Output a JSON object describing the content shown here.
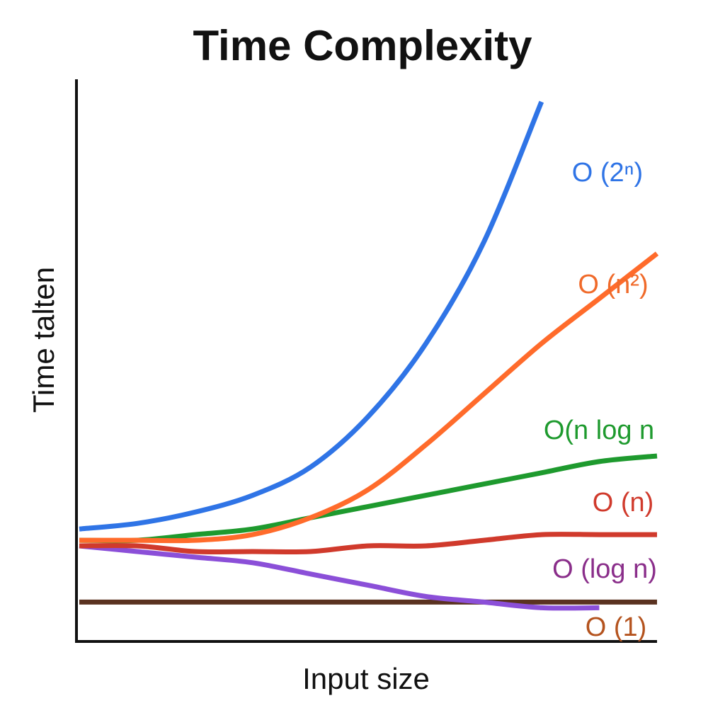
{
  "chart_data": {
    "type": "line",
    "title": "Time Complexity",
    "xlabel": "Input size",
    "ylabel": "Time talten",
    "grid": false,
    "legend": "none",
    "x": [
      0,
      0.1,
      0.2,
      0.3,
      0.4,
      0.5,
      0.6,
      0.7,
      0.8,
      0.9,
      1.0
    ],
    "ylim": [
      0,
      1
    ],
    "xlim": [
      0,
      1
    ],
    "series": [
      {
        "name": "O (2ⁿ)",
        "color": "#2f74e6",
        "values": [
          0.2,
          0.21,
          0.23,
          0.26,
          0.31,
          0.4,
          0.53,
          0.71,
          0.96,
          null,
          null
        ]
      },
      {
        "name": "O (n²)",
        "color": "#ff6b2b",
        "values": [
          0.18,
          0.18,
          0.18,
          0.19,
          0.22,
          0.27,
          0.35,
          0.44,
          0.53,
          0.61,
          0.69
        ]
      },
      {
        "name": "O(n log n",
        "color": "#1e9a2e",
        "values": [
          0.18,
          0.18,
          0.19,
          0.2,
          0.22,
          0.24,
          0.26,
          0.28,
          0.3,
          0.32,
          0.33
        ]
      },
      {
        "name": "O (n)",
        "color": "#d03a2c",
        "values": [
          0.17,
          0.17,
          0.16,
          0.16,
          0.16,
          0.17,
          0.17,
          0.18,
          0.19,
          0.19,
          0.19
        ]
      },
      {
        "name": "O (log n)",
        "color": "#8b4fd8",
        "values": [
          0.17,
          0.16,
          0.15,
          0.14,
          0.12,
          0.1,
          0.08,
          0.07,
          0.06,
          0.06,
          null
        ]
      },
      {
        "name": "O (1)",
        "color": "#5a3220",
        "values": [
          0.07,
          0.07,
          0.07,
          0.07,
          0.07,
          0.07,
          0.07,
          0.07,
          0.07,
          0.07,
          0.07
        ]
      }
    ],
    "labels": [
      {
        "text": "O (2ⁿ)",
        "color": "#2f74e6"
      },
      {
        "text": "O (n²)",
        "color": "#f06a2a"
      },
      {
        "text": "O(n log n",
        "color": "#1e9a2e"
      },
      {
        "text": "O (n)",
        "color": "#d03a2c"
      },
      {
        "text": "O (log n)",
        "color": "#8a2e8a"
      },
      {
        "text": "O (1)",
        "color": "#b4531e"
      }
    ]
  }
}
